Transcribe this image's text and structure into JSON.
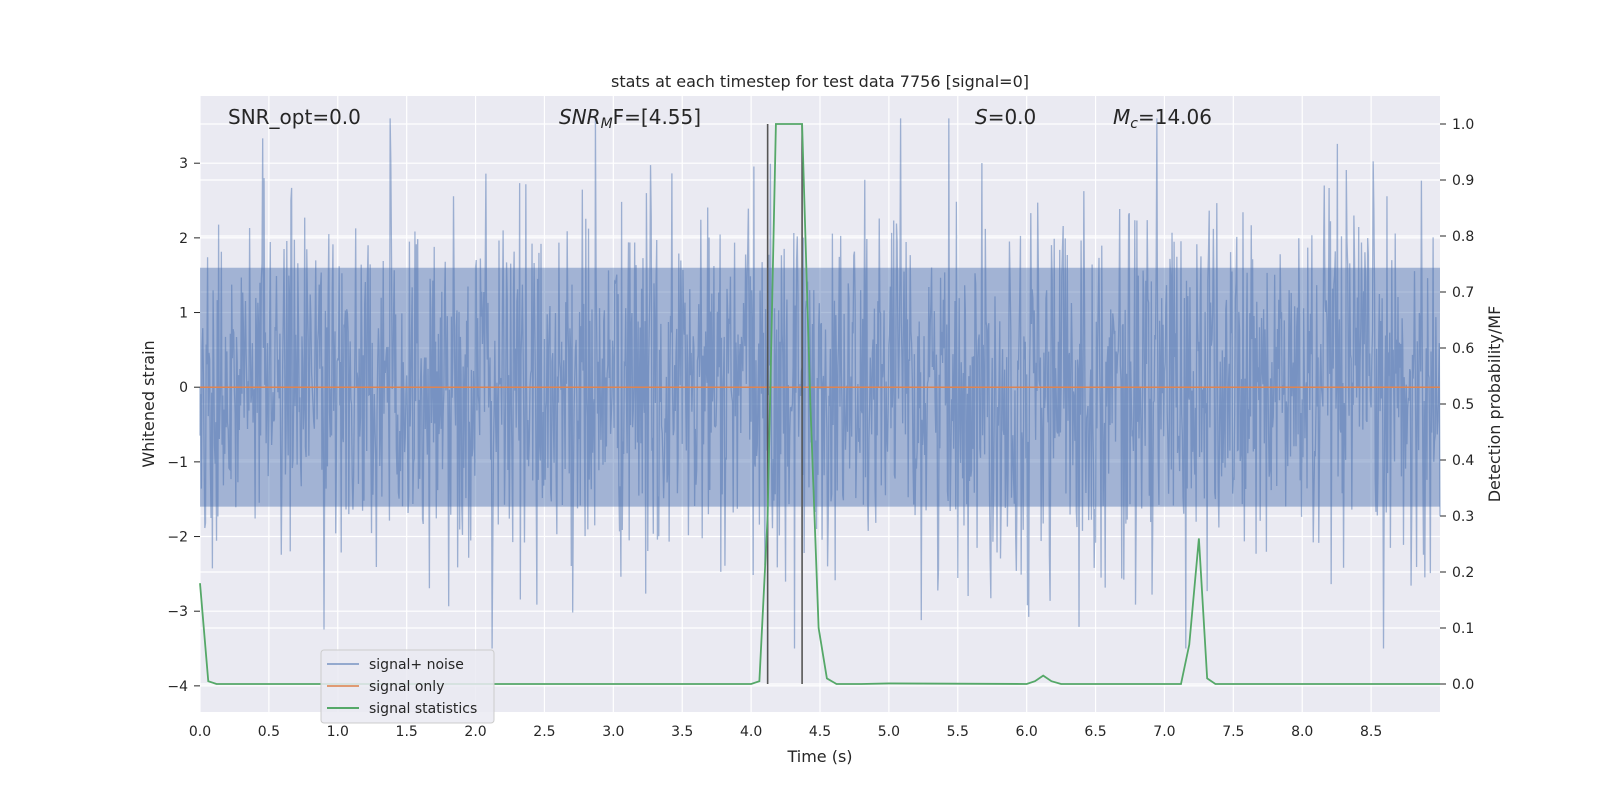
{
  "chart_data": {
    "type": "line",
    "title": "stats at each timestep for test data 7756 [signal=0]",
    "xlabel": "Time (s)",
    "ylabel_left": "Whitened strain",
    "ylabel_right": "Detection probability/MF",
    "xlim": [
      0.0,
      9.0
    ],
    "ylim_left": [
      -4.35,
      3.9
    ],
    "ylim_right": [
      -0.05,
      1.05
    ],
    "xticks": [
      "0.0",
      "0.5",
      "1.0",
      "1.5",
      "2.0",
      "2.5",
      "3.0",
      "3.5",
      "4.0",
      "4.5",
      "5.0",
      "5.5",
      "6.0",
      "6.5",
      "7.0",
      "7.5",
      "8.0",
      "8.5"
    ],
    "yticks_left": [
      "3",
      "2",
      "1",
      "0",
      "−1",
      "−2",
      "−3",
      "−4"
    ],
    "yticks_right": [
      "1.0",
      "0.9",
      "0.8",
      "0.7",
      "0.6",
      "0.5",
      "0.4",
      "0.3",
      "0.2",
      "0.1",
      "0.0"
    ],
    "grid": true,
    "legend_position": "lower-left",
    "annotations": {
      "snr_opt": "SNR_opt=0.0",
      "snr_mf_base": "SNR",
      "snr_mf_sub": "M",
      "snr_mf_rest": "F=[4.55]",
      "s_stat_base": "S",
      "s_stat_rest": "=0.0",
      "mc_base": "M",
      "mc_sub": "c",
      "mc_rest": "=14.06"
    },
    "vertical_lines_x": [
      4.12,
      4.37
    ],
    "series": [
      {
        "name": "signal+ noise",
        "color": "#4c72b0",
        "axis": "left",
        "noise_band": {
          "x_start": 0.0,
          "x_end": 9.0,
          "typical_abs": 1.6,
          "max": 3.6,
          "min": -3.5
        }
      },
      {
        "name": "signal only",
        "color": "#dd8452",
        "axis": "left",
        "x": [
          0.0,
          9.0
        ],
        "y": [
          0.0,
          0.0
        ]
      },
      {
        "name": "signal statistics",
        "color": "#55a868",
        "axis": "right",
        "x": [
          0.0,
          0.06,
          0.12,
          4.0,
          4.06,
          4.12,
          4.18,
          4.24,
          4.31,
          4.37,
          4.43,
          4.49,
          4.55,
          4.62,
          4.8,
          5.0,
          6.0,
          6.06,
          6.12,
          6.18,
          6.25,
          7.0,
          7.12,
          7.18,
          7.25,
          7.31,
          7.37,
          9.0
        ],
        "y": [
          0.18,
          0.005,
          0.0,
          0.0,
          0.005,
          0.3,
          1.0,
          1.0,
          1.0,
          1.0,
          0.5,
          0.1,
          0.01,
          0.0,
          0.0,
          0.001,
          0.0,
          0.005,
          0.015,
          0.005,
          0.0,
          0.0,
          0.0,
          0.07,
          0.26,
          0.01,
          0.0,
          0.0
        ]
      }
    ]
  }
}
